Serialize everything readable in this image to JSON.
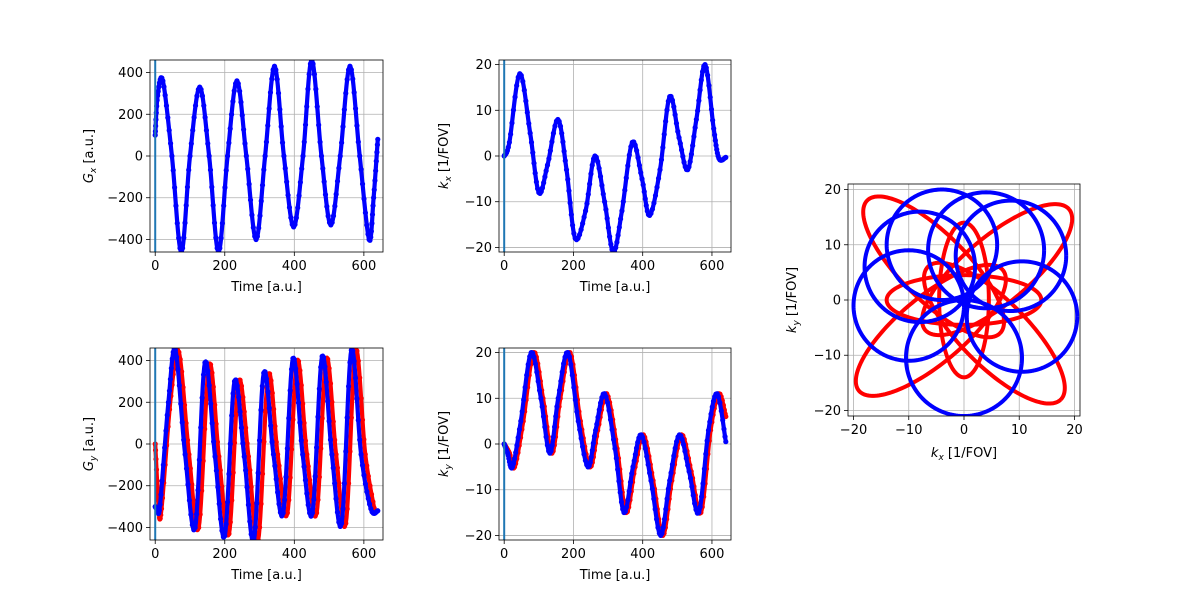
{
  "chart_data": [
    {
      "id": "gx",
      "type": "line",
      "xlabel": "Time [a.u.]",
      "ylabel_main": "G",
      "ylabel_sub": "x",
      "ylabel_unit": " [a.u.]",
      "xlim": [
        -15,
        655
      ],
      "ylim": [
        -460,
        460
      ],
      "xticks": [
        0,
        200,
        400,
        600
      ],
      "yticks": [
        -400,
        -200,
        0,
        200,
        400
      ],
      "vline_x": 0,
      "series": [
        {
          "color": "#0000ff",
          "x": [
            0,
            7,
            22,
            48,
            75,
            100,
            128,
            155,
            182,
            208,
            235,
            262,
            290,
            316,
            343,
            370,
            398,
            425,
            450,
            478,
            505,
            532,
            560,
            588,
            615,
            628,
            640
          ],
          "y": [
            100,
            290,
            360,
            0,
            -460,
            0,
            330,
            0,
            -460,
            0,
            360,
            0,
            -400,
            0,
            430,
            0,
            -340,
            0,
            460,
            0,
            -330,
            0,
            430,
            0,
            -400,
            -200,
            80
          ]
        }
      ]
    },
    {
      "id": "kx",
      "type": "line",
      "xlabel": "Time [a.u.]",
      "ylabel_main": "k",
      "ylabel_sub": "x",
      "ylabel_unit": " [1/FOV]",
      "xlim": [
        -15,
        655
      ],
      "ylim": [
        -21,
        21
      ],
      "xticks": [
        0,
        200,
        400,
        600
      ],
      "yticks": [
        -20,
        -10,
        0,
        10,
        20
      ],
      "vline_x": 0,
      "series": [
        {
          "color": "#0000ff",
          "x": [
            0,
            15,
            45,
            75,
            100,
            125,
            155,
            180,
            205,
            235,
            262,
            290,
            315,
            340,
            370,
            398,
            420,
            450,
            478,
            505,
            530,
            555,
            580,
            605,
            620,
            640
          ],
          "y": [
            0,
            3,
            18,
            5,
            -8,
            -2,
            8,
            -3,
            -18,
            -12,
            0,
            -10,
            -21,
            -12,
            3,
            -5,
            -13,
            -3,
            13,
            4,
            -3,
            8,
            20,
            6,
            -0.5,
            -0.3
          ]
        }
      ]
    },
    {
      "id": "gy",
      "type": "line",
      "xlabel": "Time [a.u.]",
      "ylabel_main": "G",
      "ylabel_sub": "y",
      "ylabel_unit": " [a.u.]",
      "xlim": [
        -15,
        655
      ],
      "ylim": [
        -460,
        460
      ],
      "xticks": [
        0,
        200,
        400,
        600
      ],
      "yticks": [
        -400,
        -200,
        0,
        200,
        400
      ],
      "vline_x": 0,
      "series": [
        {
          "color": "#ff0000",
          "x": [
            0,
            10,
            18,
            45,
            68,
            97,
            125,
            155,
            183,
            212,
            240,
            268,
            296,
            325,
            352,
            380,
            408,
            436,
            464,
            492,
            520,
            548,
            576,
            604,
            632
          ],
          "y": [
            0,
            -300,
            -310,
            230,
            440,
            -50,
            -400,
            380,
            -60,
            -430,
            300,
            -60,
            -460,
            330,
            -50,
            -330,
            400,
            -50,
            -330,
            410,
            -50,
            -380,
            450,
            -50,
            -330
          ]
        },
        {
          "color": "#0000ff",
          "x": [
            0,
            6,
            14,
            38,
            58,
            86,
            115,
            143,
            172,
            200,
            228,
            256,
            284,
            312,
            340,
            368,
            396,
            424,
            452,
            480,
            508,
            536,
            564,
            592,
            620,
            640
          ],
          "y": [
            -300,
            -310,
            -290,
            200,
            450,
            -50,
            -400,
            390,
            -60,
            -440,
            300,
            -60,
            -460,
            340,
            -50,
            -330,
            410,
            -50,
            -330,
            420,
            -50,
            -380,
            450,
            -50,
            -310,
            -320
          ]
        }
      ]
    },
    {
      "id": "ky",
      "type": "line",
      "xlabel": "Time [a.u.]",
      "ylabel_main": "k",
      "ylabel_sub": "y",
      "ylabel_unit": " [1/FOV]",
      "xlim": [
        -15,
        655
      ],
      "ylim": [
        -21,
        21
      ],
      "xticks": [
        0,
        200,
        400,
        600
      ],
      "yticks": [
        -20,
        -10,
        0,
        10,
        20
      ],
      "vline_x": 0,
      "series": [
        {
          "color": "#ff0000",
          "x": [
            0,
            15,
            30,
            55,
            85,
            112,
            138,
            162,
            190,
            220,
            248,
            270,
            296,
            326,
            352,
            378,
            402,
            430,
            458,
            484,
            512,
            540,
            568,
            596,
            620,
            640
          ],
          "y": [
            0,
            -2,
            -5,
            5,
            20,
            10,
            -2,
            10,
            20,
            5,
            -5,
            3,
            11,
            -1,
            -15,
            -5,
            2,
            -8,
            -20,
            -8,
            2,
            -6,
            -15,
            3,
            11,
            6
          ]
        },
        {
          "color": "#0000ff",
          "x": [
            0,
            10,
            24,
            48,
            78,
            106,
            132,
            156,
            184,
            214,
            242,
            264,
            290,
            320,
            346,
            372,
            396,
            424,
            452,
            478,
            506,
            534,
            562,
            590,
            615,
            640
          ],
          "y": [
            0,
            -2,
            -5,
            5,
            20,
            10,
            -2,
            10,
            20,
            5,
            -5,
            3,
            11,
            -1,
            -15,
            -5,
            2,
            -8,
            -20,
            -8,
            2,
            -6,
            -15,
            3,
            11,
            0.5
          ]
        }
      ]
    },
    {
      "id": "kspace",
      "type": "scatter",
      "xlabel_main": "k",
      "xlabel_sub": "x",
      "xlabel_unit": " [1/FOV]",
      "ylabel_main": "k",
      "ylabel_sub": "y",
      "ylabel_unit": " [1/FOV]",
      "xlim": [
        -21,
        21
      ],
      "ylim": [
        -21,
        21
      ],
      "xticks": [
        -20,
        -10,
        0,
        10,
        20
      ],
      "yticks": [
        -20,
        -10,
        0,
        10,
        20
      ],
      "loops": [
        {
          "color": "#ff0000",
          "cx": -5.5,
          "cy": 6,
          "rx": 17,
          "ry": 6,
          "angle": -45
        },
        {
          "color": "#ff0000",
          "cx": 6,
          "cy": 5.5,
          "rx": 17,
          "ry": 6,
          "angle": 40
        },
        {
          "color": "#ff0000",
          "cx": 5.5,
          "cy": -6,
          "rx": 17,
          "ry": 6,
          "angle": -45
        },
        {
          "color": "#ff0000",
          "cx": -6,
          "cy": -5.5,
          "rx": 17,
          "ry": 6,
          "angle": 40
        },
        {
          "color": "#ff0000",
          "cx": 0,
          "cy": 0,
          "rx": 14,
          "ry": 4.5,
          "angle": 0
        },
        {
          "color": "#ff0000",
          "cx": 0,
          "cy": 0,
          "rx": 4.5,
          "ry": 14,
          "angle": 0
        },
        {
          "color": "#0000ff",
          "cx": -4,
          "cy": 10,
          "rx": 10,
          "ry": 10,
          "angle": 0
        },
        {
          "color": "#0000ff",
          "cx": 8.5,
          "cy": 8,
          "rx": 10,
          "ry": 10,
          "angle": 0
        },
        {
          "color": "#0000ff",
          "cx": 10.5,
          "cy": -3,
          "rx": 10,
          "ry": 10,
          "angle": 0
        },
        {
          "color": "#0000ff",
          "cx": 0,
          "cy": -10.5,
          "rx": 10.5,
          "ry": 10.5,
          "angle": 0
        },
        {
          "color": "#0000ff",
          "cx": -10,
          "cy": -1,
          "rx": 10,
          "ry": 10,
          "angle": 0
        },
        {
          "color": "#0000ff",
          "cx": 4,
          "cy": 9,
          "rx": 10.5,
          "ry": 10.5,
          "angle": 0
        },
        {
          "color": "#0000ff",
          "cx": -8,
          "cy": 6,
          "rx": 10,
          "ry": 10,
          "angle": 0
        }
      ],
      "center_marker": {
        "x": 0,
        "y": 0,
        "color": "#0000ff"
      }
    }
  ]
}
